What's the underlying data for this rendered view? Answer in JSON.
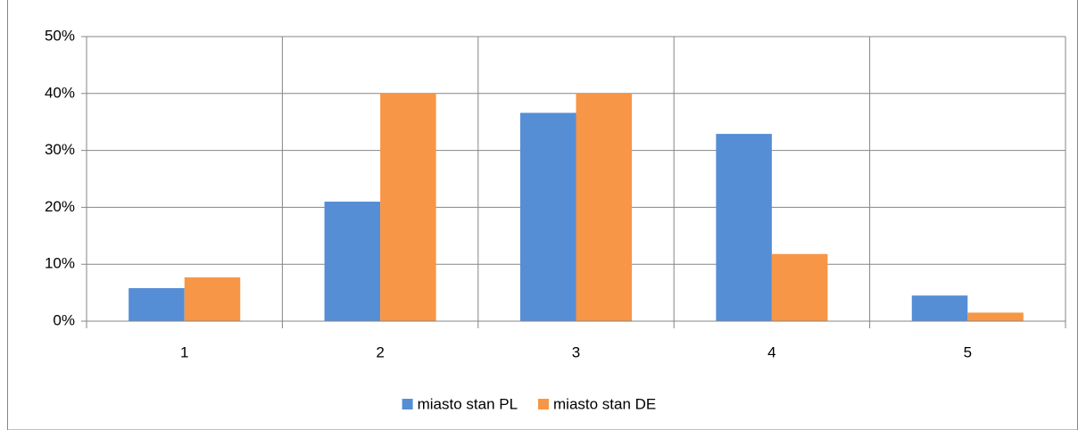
{
  "chart_data": {
    "type": "bar",
    "categories": [
      "1",
      "2",
      "3",
      "4",
      "5"
    ],
    "series": [
      {
        "name": "miasto stan PL",
        "color": "#558ed5",
        "values": [
          5.8,
          21.0,
          36.6,
          32.9,
          4.5
        ]
      },
      {
        "name": "miasto stan DE",
        "color": "#f79646",
        "values": [
          7.7,
          40.0,
          40.0,
          11.8,
          1.5
        ]
      }
    ],
    "ylim": [
      0,
      50
    ],
    "yticks": [
      {
        "value": 0,
        "label": "0%"
      },
      {
        "value": 10,
        "label": "10%"
      },
      {
        "value": 20,
        "label": "20%"
      },
      {
        "value": 30,
        "label": "30%"
      },
      {
        "value": 40,
        "label": "40%"
      },
      {
        "value": 50,
        "label": "50%"
      }
    ],
    "grid": true,
    "legend": "bottom"
  }
}
